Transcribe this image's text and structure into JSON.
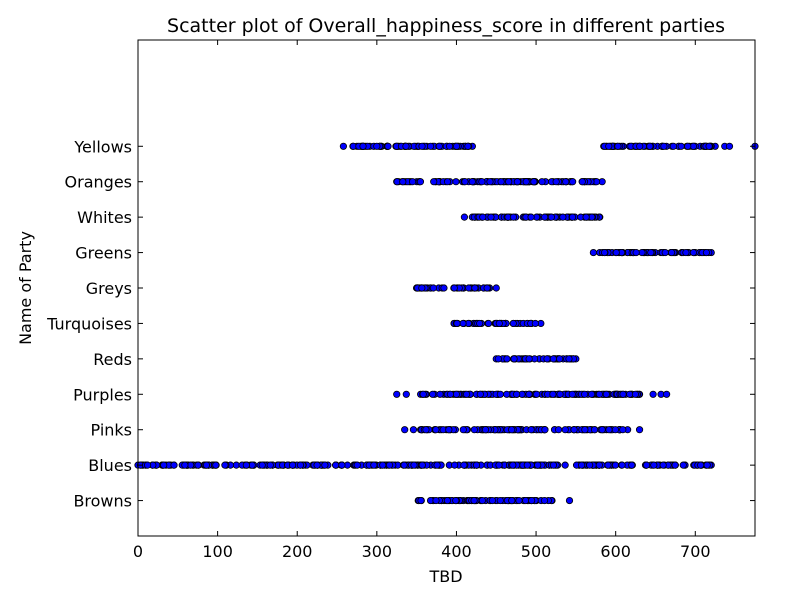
{
  "chart_data": {
    "type": "scatter",
    "title": "Scatter plot of Overall_happiness_score in different parties",
    "xlabel": "TBD",
    "ylabel": "Name of Party",
    "xlim": [
      0,
      775
    ],
    "ylim": [
      -1,
      13
    ],
    "xticks": [
      "0",
      "100",
      "200",
      "300",
      "400",
      "500",
      "600",
      "700"
    ],
    "categories": [
      "Browns",
      "Blues",
      "Pinks",
      "Purples",
      "Reds",
      "Turquoises",
      "Greys",
      "Greens",
      "Whites",
      "Oranges",
      "Yellows"
    ],
    "marker_color": "#0000ff",
    "marker_edge_color": "#000000",
    "grid": false,
    "series": [
      {
        "category": "Browns",
        "ranges": [
          [
            352,
            520
          ]
        ],
        "outliers": [
          542
        ]
      },
      {
        "category": "Blues",
        "ranges": [
          [
            0,
            720
          ]
        ],
        "outliers": []
      },
      {
        "category": "Pinks",
        "ranges": [
          [
            355,
            615
          ]
        ],
        "outliers": [
          335,
          346,
          630
        ]
      },
      {
        "category": "Purples",
        "ranges": [
          [
            355,
            630
          ]
        ],
        "outliers": [
          325,
          337,
          647,
          657,
          664
        ]
      },
      {
        "category": "Reds",
        "ranges": [
          [
            450,
            550
          ]
        ],
        "outliers": []
      },
      {
        "category": "Turquoises",
        "ranges": [
          [
            397,
            506
          ]
        ],
        "outliers": []
      },
      {
        "category": "Greys",
        "ranges": [
          [
            350,
            450
          ]
        ],
        "outliers": []
      },
      {
        "category": "Greens",
        "ranges": [
          [
            580,
            720
          ]
        ],
        "outliers": [
          572
        ]
      },
      {
        "category": "Whites",
        "ranges": [
          [
            420,
            580
          ]
        ],
        "outliers": [
          410
        ]
      },
      {
        "category": "Oranges",
        "ranges": [
          [
            325,
            583
          ]
        ],
        "outliers": []
      },
      {
        "category": "Yellows",
        "ranges": [
          [
            270,
            420
          ],
          [
            585,
            725
          ]
        ],
        "outliers": [
          258,
          737,
          743,
          775
        ]
      }
    ]
  }
}
